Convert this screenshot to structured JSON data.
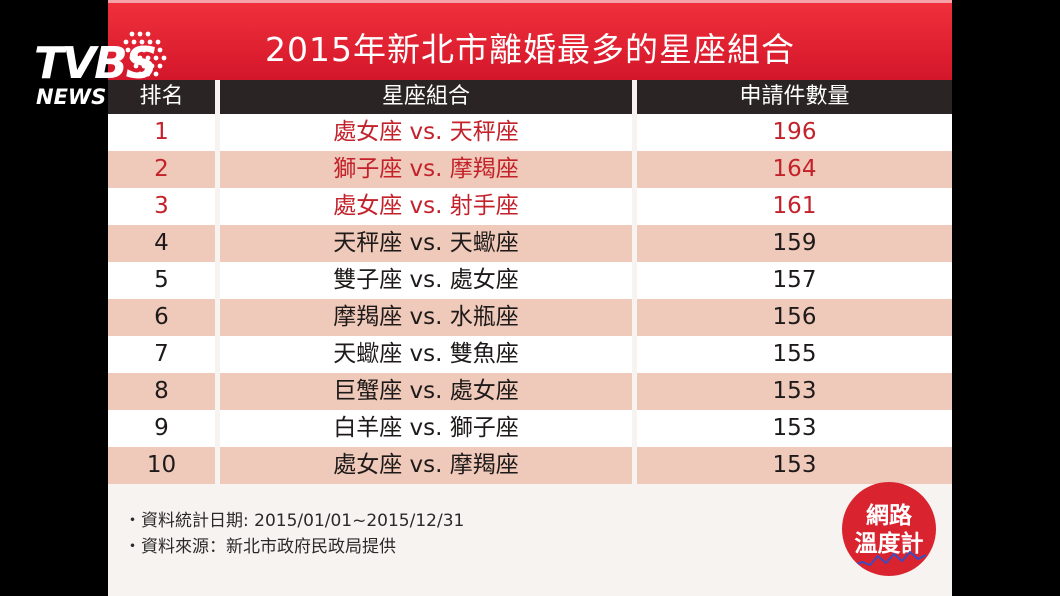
{
  "title": "2015年新北市離婚最多的星座組合",
  "headers": {
    "rank": "排名",
    "pair": "星座組合",
    "count": "申請件數量"
  },
  "rows": [
    {
      "rank": "1",
      "pair": "處女座 vs. 天秤座",
      "count": "196"
    },
    {
      "rank": "2",
      "pair": "獅子座 vs. 摩羯座",
      "count": "164"
    },
    {
      "rank": "3",
      "pair": "處女座 vs. 射手座",
      "count": "161"
    },
    {
      "rank": "4",
      "pair": "天秤座 vs. 天蠍座",
      "count": "159"
    },
    {
      "rank": "5",
      "pair": "雙子座 vs. 處女座",
      "count": "157"
    },
    {
      "rank": "6",
      "pair": "摩羯座 vs. 水瓶座",
      "count": "156"
    },
    {
      "rank": "7",
      "pair": "天蠍座 vs. 雙魚座",
      "count": "155"
    },
    {
      "rank": "8",
      "pair": "巨蟹座 vs. 處女座",
      "count": "153"
    },
    {
      "rank": "9",
      "pair": "白羊座 vs. 獅子座",
      "count": "153"
    },
    {
      "rank": "10",
      "pair": "處女座 vs. 摩羯座",
      "count": "153"
    }
  ],
  "notes": {
    "date": "・資料統計日期: 2015/01/01~2015/12/31",
    "source": "・資料來源：新北市政府民政局提供"
  },
  "badge": {
    "line1": "網路",
    "line2": "溫度計"
  },
  "logo": {
    "main": "TVBS",
    "sub": "NEWS"
  },
  "colors": {
    "title_bg": "#e0202f",
    "header_bg": "#2a2524",
    "row_alt": "#efc9b9",
    "highlight_text": "#c3222b",
    "badge_bg": "#d9232f"
  },
  "highlighted_ranks": [
    "1",
    "2",
    "3"
  ]
}
